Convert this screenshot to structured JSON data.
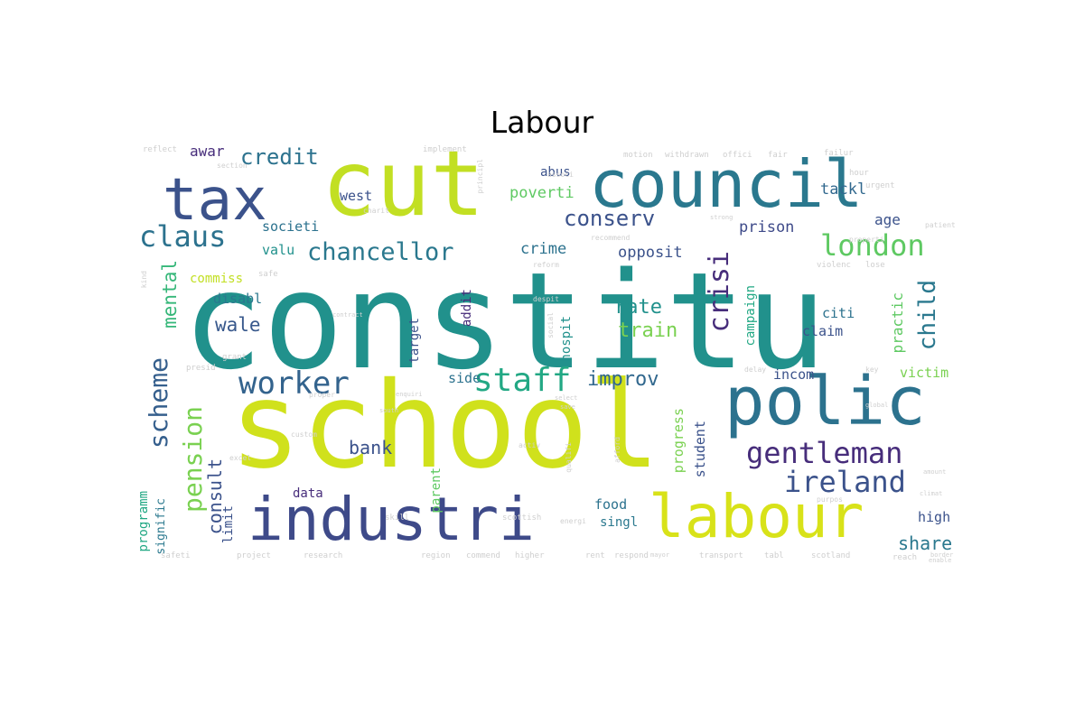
{
  "title": "Labour",
  "words": [
    {
      "text": "constitu",
      "color": "#21918c",
      "vertical": false
    },
    {
      "text": "school",
      "color": "#d0e11c",
      "vertical": false
    },
    {
      "text": "cut",
      "color": "#c2df23",
      "vertical": false
    },
    {
      "text": "council",
      "color": "#2a788e",
      "vertical": false
    },
    {
      "text": "tax",
      "color": "#3b528b",
      "vertical": false
    },
    {
      "text": "industri",
      "color": "#3e4a89",
      "vertical": false
    },
    {
      "text": "labour",
      "color": "#d8e219",
      "vertical": false
    },
    {
      "text": "polic",
      "color": "#2c728e",
      "vertical": false
    },
    {
      "text": "gentleman",
      "color": "#472d7b",
      "vertical": false
    },
    {
      "text": "ireland",
      "color": "#3b528b",
      "vertical": false
    },
    {
      "text": "london",
      "color": "#5ec962",
      "vertical": false
    },
    {
      "text": "chancellor",
      "color": "#2a788e",
      "vertical": false
    },
    {
      "text": "staff",
      "color": "#22a884",
      "vertical": false
    },
    {
      "text": "worker",
      "color": "#33638d",
      "vertical": false
    },
    {
      "text": "claus",
      "color": "#2c728e",
      "vertical": false
    },
    {
      "text": "scheme",
      "color": "#355f8d",
      "vertical": true
    },
    {
      "text": "pension",
      "color": "#7ad151",
      "vertical": true
    },
    {
      "text": "conserv",
      "color": "#3b528b",
      "vertical": false
    },
    {
      "text": "crisi",
      "color": "#472d7b",
      "vertical": true
    },
    {
      "text": "child",
      "color": "#2a788e",
      "vertical": true
    },
    {
      "text": "credit",
      "color": "#2c728e",
      "vertical": false
    },
    {
      "text": "improv",
      "color": "#31688e",
      "vertical": false
    },
    {
      "text": "rate",
      "color": "#21918c",
      "vertical": false
    },
    {
      "text": "train",
      "color": "#7ad151",
      "vertical": false
    },
    {
      "text": "wale",
      "color": "#38588c",
      "vertical": false
    },
    {
      "text": "bank",
      "color": "#3b528b",
      "vertical": false
    },
    {
      "text": "share",
      "color": "#2a788e",
      "vertical": false
    },
    {
      "text": "mental",
      "color": "#35b779",
      "vertical": true
    },
    {
      "text": "consult",
      "color": "#3b528b",
      "vertical": true
    },
    {
      "text": "crime",
      "color": "#2c728e",
      "vertical": false
    },
    {
      "text": "prison",
      "color": "#3e4a89",
      "vertical": false
    },
    {
      "text": "opposit",
      "color": "#3b528b",
      "vertical": false
    },
    {
      "text": "tackl",
      "color": "#31688e",
      "vertical": false
    },
    {
      "text": "poverti",
      "color": "#5ec962",
      "vertical": false
    },
    {
      "text": "west",
      "color": "#3b528b",
      "vertical": false
    },
    {
      "text": "societi",
      "color": "#2c728e",
      "vertical": false
    },
    {
      "text": "valu",
      "color": "#21918c",
      "vertical": false
    },
    {
      "text": "awar",
      "color": "#472d7b",
      "vertical": false
    },
    {
      "text": "abus",
      "color": "#3b528b",
      "vertical": false
    },
    {
      "text": "age",
      "color": "#3b528b",
      "vertical": false
    },
    {
      "text": "commiss",
      "color": "#c2df23",
      "vertical": false
    },
    {
      "text": "disabl",
      "color": "#2a788e",
      "vertical": false
    },
    {
      "text": "citi",
      "color": "#2c728e",
      "vertical": false
    },
    {
      "text": "claim",
      "color": "#3b528b",
      "vertical": false
    },
    {
      "text": "practic",
      "color": "#5ec962",
      "vertical": true
    },
    {
      "text": "incom",
      "color": "#3b528b",
      "vertical": false
    },
    {
      "text": "victim",
      "color": "#7ad151",
      "vertical": false
    },
    {
      "text": "side",
      "color": "#2c728e",
      "vertical": false
    },
    {
      "text": "target",
      "color": "#3b528b",
      "vertical": true
    },
    {
      "text": "addit",
      "color": "#472d7b",
      "vertical": true
    },
    {
      "text": "hospit",
      "color": "#21918c",
      "vertical": true
    },
    {
      "text": "campaign",
      "color": "#22a884",
      "vertical": true
    },
    {
      "text": "progress",
      "color": "#7ad151",
      "vertical": true
    },
    {
      "text": "student",
      "color": "#3b528b",
      "vertical": true
    },
    {
      "text": "food",
      "color": "#2c728e",
      "vertical": false
    },
    {
      "text": "singl",
      "color": "#2a788e",
      "vertical": false
    },
    {
      "text": "high",
      "color": "#3b528b",
      "vertical": false
    },
    {
      "text": "data",
      "color": "#472d7b",
      "vertical": false
    },
    {
      "text": "parent",
      "color": "#5ec962",
      "vertical": true
    },
    {
      "text": "limit",
      "color": "#3b528b",
      "vertical": true
    },
    {
      "text": "programm",
      "color": "#22a884",
      "vertical": true
    },
    {
      "text": "signific",
      "color": "#2a788e",
      "vertical": true
    },
    {
      "text": "reflect",
      "color": "#cfcfcf",
      "vertical": false
    },
    {
      "text": "implement",
      "color": "#cfcfcf",
      "vertical": false
    },
    {
      "text": "motion",
      "color": "#cfcfcf",
      "vertical": false
    },
    {
      "text": "withdrawn",
      "color": "#cfcfcf",
      "vertical": false
    },
    {
      "text": "offici",
      "color": "#cfcfcf",
      "vertical": false
    },
    {
      "text": "fair",
      "color": "#cfcfcf",
      "vertical": false
    },
    {
      "text": "failur",
      "color": "#cfcfcf",
      "vertical": false
    },
    {
      "text": "hour",
      "color": "#cfcfcf",
      "vertical": false
    },
    {
      "text": "urgent",
      "color": "#cfcfcf",
      "vertical": false
    },
    {
      "text": "patient",
      "color": "#cfcfcf",
      "vertical": false
    },
    {
      "text": "properti",
      "color": "#cfcfcf",
      "vertical": false
    },
    {
      "text": "violenc",
      "color": "#cfcfcf",
      "vertical": false
    },
    {
      "text": "lose",
      "color": "#cfcfcf",
      "vertical": false
    },
    {
      "text": "safe",
      "color": "#cfcfcf",
      "vertical": false
    },
    {
      "text": "reform",
      "color": "#cfcfcf",
      "vertical": false
    },
    {
      "text": "grant",
      "color": "#cfcfcf",
      "vertical": false
    },
    {
      "text": "presid",
      "color": "#cfcfcf",
      "vertical": false
    },
    {
      "text": "custom",
      "color": "#cfcfcf",
      "vertical": false
    },
    {
      "text": "proper",
      "color": "#cfcfcf",
      "vertical": false
    },
    {
      "text": "activ",
      "color": "#cfcfcf",
      "vertical": false
    },
    {
      "text": "qualifi",
      "color": "#cfcfcf",
      "vertical": true
    },
    {
      "text": "afford",
      "color": "#cfcfcf",
      "vertical": true
    },
    {
      "text": "excel",
      "color": "#cfcfcf",
      "vertical": false
    },
    {
      "text": "delay",
      "color": "#cfcfcf",
      "vertical": false
    },
    {
      "text": "key",
      "color": "#cfcfcf",
      "vertical": false
    },
    {
      "text": "global",
      "color": "#cfcfcf",
      "vertical": false
    },
    {
      "text": "skill",
      "color": "#cfcfcf",
      "vertical": false
    },
    {
      "text": "scottish",
      "color": "#cfcfcf",
      "vertical": false
    },
    {
      "text": "energi",
      "color": "#cfcfcf",
      "vertical": false
    },
    {
      "text": "purpos",
      "color": "#cfcfcf",
      "vertical": false
    },
    {
      "text": "climat",
      "color": "#cfcfcf",
      "vertical": false
    },
    {
      "text": "safeti",
      "color": "#cfcfcf",
      "vertical": false
    },
    {
      "text": "project",
      "color": "#cfcfcf",
      "vertical": false
    },
    {
      "text": "research",
      "color": "#cfcfcf",
      "vertical": false
    },
    {
      "text": "region",
      "color": "#cfcfcf",
      "vertical": false
    },
    {
      "text": "commend",
      "color": "#cfcfcf",
      "vertical": false
    },
    {
      "text": "higher",
      "color": "#cfcfcf",
      "vertical": false
    },
    {
      "text": "rent",
      "color": "#cfcfcf",
      "vertical": false
    },
    {
      "text": "respond",
      "color": "#cfcfcf",
      "vertical": false
    },
    {
      "text": "transport",
      "color": "#cfcfcf",
      "vertical": false
    },
    {
      "text": "tabl",
      "color": "#cfcfcf",
      "vertical": false
    },
    {
      "text": "scotland",
      "color": "#cfcfcf",
      "vertical": false
    },
    {
      "text": "reach",
      "color": "#cfcfcf",
      "vertical": false
    },
    {
      "text": "section",
      "color": "#cfcfcf",
      "vertical": false
    },
    {
      "text": "charit",
      "color": "#cfcfcf",
      "vertical": false
    },
    {
      "text": "associ",
      "color": "#cfcfcf",
      "vertical": false
    },
    {
      "text": "recommend",
      "color": "#cfcfcf",
      "vertical": false
    },
    {
      "text": "principl",
      "color": "#cfcfcf",
      "vertical": true
    },
    {
      "text": "strong",
      "color": "#cfcfcf",
      "vertical": false
    },
    {
      "text": "kind",
      "color": "#cfcfcf",
      "vertical": true
    },
    {
      "text": "despit",
      "color": "#cfcfcf",
      "vertical": false
    },
    {
      "text": "social",
      "color": "#cfcfcf",
      "vertical": true
    },
    {
      "text": "mayor",
      "color": "#cfcfcf",
      "vertical": false
    },
    {
      "text": "border",
      "color": "#cfcfcf",
      "vertical": false
    },
    {
      "text": "enable",
      "color": "#cfcfcf",
      "vertical": false
    },
    {
      "text": "amount",
      "color": "#cfcfcf",
      "vertical": false
    },
    {
      "text": "select",
      "color": "#cfcfcf",
      "vertical": false
    },
    {
      "text": "save",
      "color": "#cfcfcf",
      "vertical": false
    },
    {
      "text": "south",
      "color": "#cfcfcf",
      "vertical": false
    },
    {
      "text": "enquiri",
      "color": "#cfcfcf",
      "vertical": false
    },
    {
      "text": "contract",
      "color": "#cfcfcf",
      "vertical": false
    }
  ]
}
